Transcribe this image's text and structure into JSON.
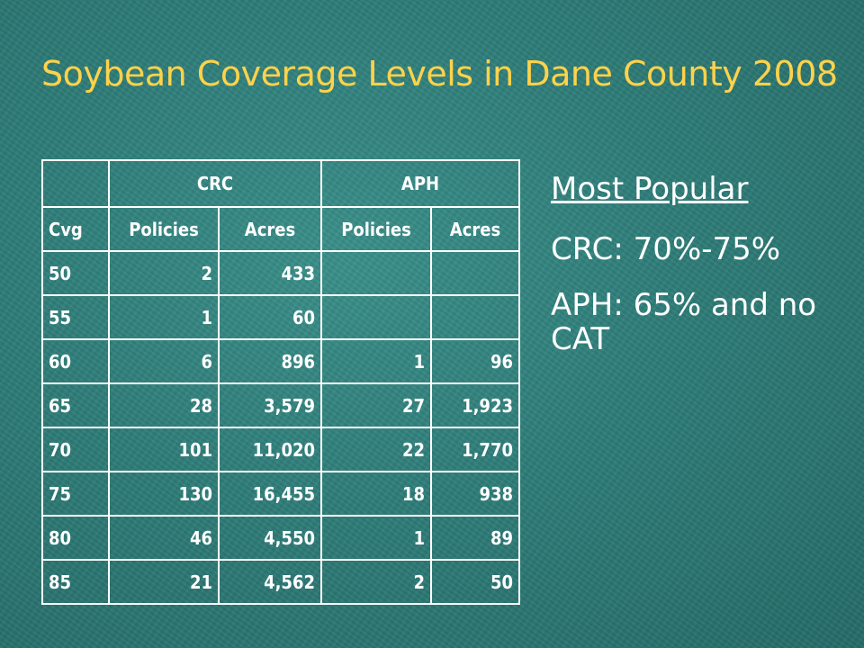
{
  "slide": {
    "title": "Soybean Coverage Levels in Dane County 2008"
  },
  "table": {
    "groups": [
      "",
      "CRC",
      "APH"
    ],
    "columns": [
      "Cvg",
      "Policies",
      "Acres",
      "Policies",
      "Acres"
    ],
    "rows": [
      [
        "50",
        "2",
        "433",
        "",
        ""
      ],
      [
        "55",
        "1",
        "60",
        "",
        ""
      ],
      [
        "60",
        "6",
        "896",
        "1",
        "96"
      ],
      [
        "65",
        "28",
        "3,579",
        "27",
        "1,923"
      ],
      [
        "70",
        "101",
        "11,020",
        "22",
        "1,770"
      ],
      [
        "75",
        "130",
        "16,455",
        "18",
        "938"
      ],
      [
        "80",
        "46",
        "4,550",
        "1",
        "89"
      ],
      [
        "85",
        "21",
        "4,562",
        "2",
        "50"
      ]
    ]
  },
  "sidebar": {
    "heading": "Most Popular",
    "crc_line": "CRC: 70%-75%",
    "aph_line": "APH: 65% and no CAT"
  },
  "colors": {
    "background": "#2e7d79",
    "title": "#ffd24a",
    "text": "#ffffff"
  }
}
